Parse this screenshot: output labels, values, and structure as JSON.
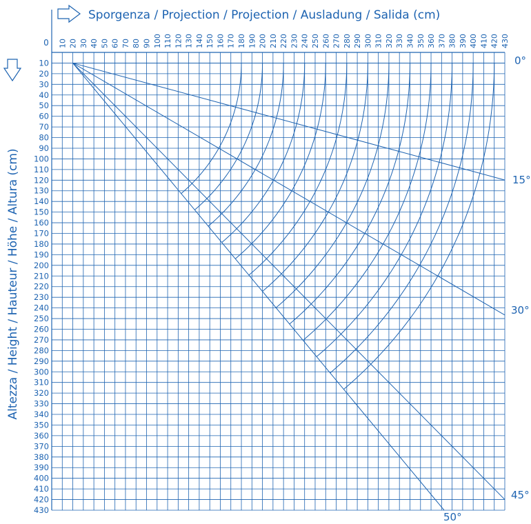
{
  "colors": {
    "line": "#1d63b1",
    "background": "#ffffff"
  },
  "header": {
    "title": "Sporgenza / Projection / Projection / Ausladung / Salida (cm)",
    "icon": "arrow-right-outline-icon"
  },
  "side": {
    "title": "Altezza / Height / Hauteur / Höhe / Altura (cm)",
    "icon": "arrow-down-outline-icon"
  },
  "origin_label": "0",
  "x_ticks": [
    "10",
    "20",
    "30",
    "40",
    "50",
    "60",
    "70",
    "80",
    "90",
    "100",
    "110",
    "120",
    "130",
    "140",
    "150",
    "160",
    "170",
    "180",
    "190",
    "200",
    "210",
    "220",
    "230",
    "240",
    "250",
    "260",
    "270",
    "280",
    "290",
    "300",
    "310",
    "320",
    "330",
    "340",
    "350",
    "360",
    "370",
    "380",
    "390",
    "400",
    "410",
    "420",
    "430"
  ],
  "y_ticks": [
    "10",
    "20",
    "30",
    "40",
    "50",
    "60",
    "70",
    "80",
    "90",
    "100",
    "110",
    "120",
    "130",
    "140",
    "150",
    "160",
    "170",
    "180",
    "190",
    "200",
    "210",
    "220",
    "230",
    "240",
    "250",
    "260",
    "270",
    "280",
    "290",
    "300",
    "310",
    "320",
    "330",
    "340",
    "350",
    "360",
    "370",
    "380",
    "390",
    "400",
    "410",
    "420",
    "430"
  ],
  "angle_labels": [
    "0°",
    "15°",
    "30°",
    "45°",
    "50°"
  ],
  "chart_data": {
    "type": "line",
    "xlabel": "Sporgenza / Projection / Projection / Ausladung / Salida (cm)",
    "ylabel": "Altezza / Height / Hauteur / Höhe / Altura (cm)",
    "xlim": [
      0,
      430
    ],
    "ylim": [
      0,
      430
    ],
    "grid": true,
    "pivot": [
      20,
      10
    ],
    "angle_lines_deg": [
      0,
      15,
      30,
      45,
      50
    ],
    "arm_lengths": [
      160,
      180,
      200,
      220,
      240,
      260,
      280,
      300,
      320,
      340,
      360,
      380,
      400
    ]
  }
}
